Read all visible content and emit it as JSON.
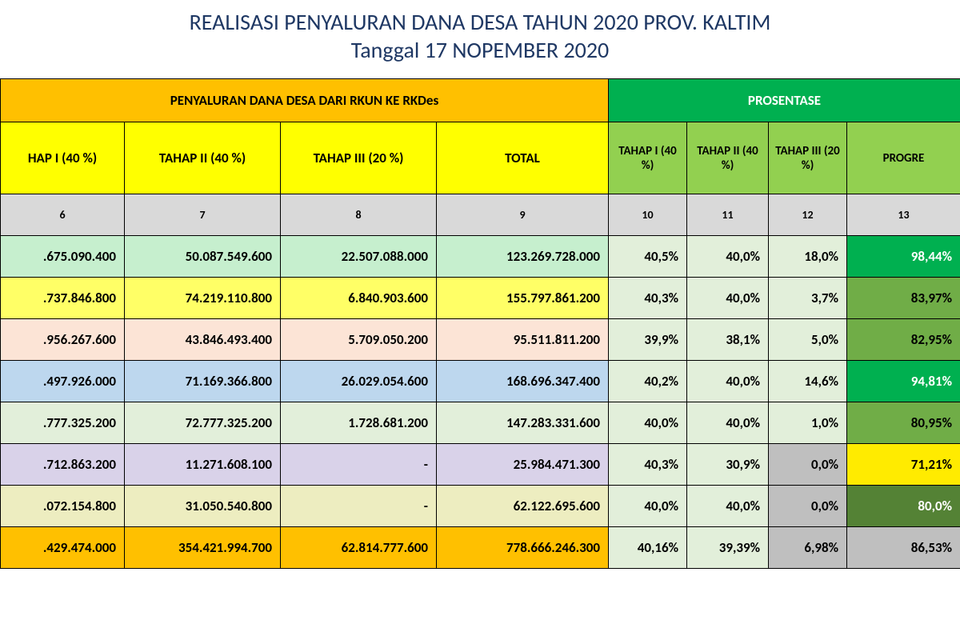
{
  "title1": "REALISASI PENYALURAN  DANA DESA TAHUN 2020 PROV. KALTIM",
  "title2": "Tanggal  17 NOPEMBER  2020",
  "hdrLeft": "PENYALURAN DANA DESA DARI RKUN KE RKDes",
  "hdrRight": "PROSENTASE",
  "sub": {
    "c6": "HAP I (40 %)",
    "c7": "TAHAP II (40 %)",
    "c8": "TAHAP III (20 %)",
    "c9": "TOTAL",
    "c10": "TAHAP I (40 %)",
    "c11": "TAHAP II (40 %)",
    "c12": "TAHAP III   (20 %)",
    "c13": "PROGRE"
  },
  "nums": {
    "c6": "6",
    "c7": "7",
    "c8": "8",
    "c9": "9",
    "c10": "10",
    "c11": "11",
    "c12": "12",
    "c13": "13"
  },
  "rows": [
    {
      "t1": ".675.090.400",
      "t2": "50.087.549.600",
      "t3": "22.507.088.000",
      "tot": "123.269.728.000",
      "p1": "40,5%",
      "p2": "40,0%",
      "p3": "18,0%",
      "prog": "98,44%",
      "cls": "bg-lime",
      "prog_cls": "bg-green2"
    },
    {
      "t1": ".737.846.800",
      "t2": "74.219.110.800",
      "t3": "6.840.903.600",
      "tot": "155.797.861.200",
      "p1": "40,3%",
      "p2": "40,0%",
      "p3": "3,7%",
      "prog": "83,97%",
      "cls": "bg-yellow",
      "prog_cls": "bg-green1"
    },
    {
      "t1": ".956.267.600",
      "t2": "43.846.493.400",
      "t3": "5.709.050.200",
      "tot": "95.511.811.200",
      "p1": "39,9%",
      "p2": "38,1%",
      "p3": "5,0%",
      "prog": "82,95%",
      "cls": "bg-peach",
      "prog_cls": "bg-green1"
    },
    {
      "t1": ".497.926.000",
      "t2": "71.169.366.800",
      "t3": "26.029.054.600",
      "tot": "168.696.347.400",
      "p1": "40,2%",
      "p2": "40,0%",
      "p3": "14,6%",
      "prog": "94,81%",
      "cls": "bg-blue",
      "prog_cls": "bg-green2"
    },
    {
      "t1": ".777.325.200",
      "t2": "72.777.325.200",
      "t3": "1.728.681.200",
      "tot": "147.283.331.600",
      "p1": "40,0%",
      "p2": "40,0%",
      "p3": "1,0%",
      "prog": "80,95%",
      "cls": "bg-olive",
      "prog_cls": "bg-green1"
    },
    {
      "t1": ".712.863.200",
      "t2": "11.271.608.100",
      "t3": "-",
      "tot": "25.984.471.300",
      "p1": "40,3%",
      "p2": "30,9%",
      "p3": "0,0%",
      "prog": "71,21%",
      "cls": "bg-purple",
      "prog_cls": "bg-yellow2"
    },
    {
      "t1": ".072.154.800",
      "t2": "31.050.540.800",
      "t3": "-",
      "tot": "62.122.695.600",
      "p1": "40,0%",
      "p2": "40,0%",
      "p3": "0,0%",
      "prog": "80,0%",
      "cls": "bg-tan",
      "prog_cls": "bg-green3"
    },
    {
      "t1": ".429.474.000",
      "t2": "354.421.994.700",
      "t3": "62.814.777.600",
      "tot": "778.666.246.300",
      "p1": "40,16%",
      "p2": "39,39%",
      "p3": "6,98%",
      "prog": "86,53%",
      "cls": "bg-orange",
      "prog_cls": "bg-gray"
    }
  ]
}
